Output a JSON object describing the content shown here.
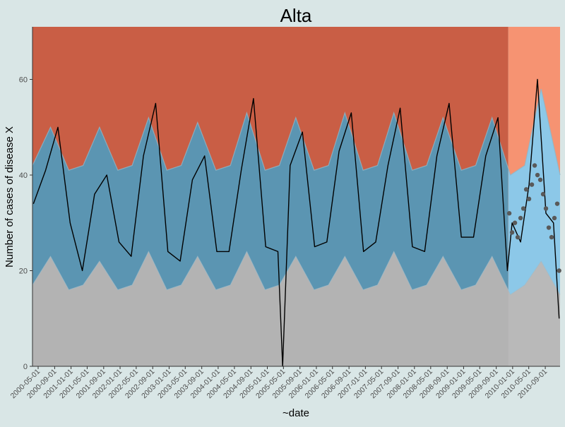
{
  "chart_data": {
    "type": "area",
    "title": "Alta",
    "xlabel": "~date",
    "ylabel": "Number of cases of disease X",
    "xlim": [
      "2000-03-20",
      "2010-12-20"
    ],
    "ylim": [
      0,
      71
    ],
    "yticks": [
      0,
      20,
      40,
      60
    ],
    "xticks": [
      "2000-05-01",
      "2000-09-01",
      "2001-01-01",
      "2001-05-01",
      "2001-09-01",
      "2002-01-01",
      "2002-05-01",
      "2002-09-01",
      "2003-01-01",
      "2003-05-01",
      "2003-09-01",
      "2004-01-01",
      "2004-05-01",
      "2004-09-01",
      "2005-01-01",
      "2005-05-01",
      "2005-09-01",
      "2006-01-01",
      "2006-05-01",
      "2006-09-01",
      "2007-01-01",
      "2007-05-01",
      "2007-09-01",
      "2008-01-01",
      "2008-05-01",
      "2008-09-01",
      "2009-01-01",
      "2009-05-01",
      "2009-09-01",
      "2010-01-01",
      "2010-05-01",
      "2010-09-01"
    ],
    "grid": false,
    "legend": "none",
    "prediction_start": "2009-11-30",
    "colors": {
      "background": "#d9e6e6",
      "gray_zone": "#b3b3b3",
      "blue_zone": "#5b95b2",
      "red_zone": "#c95e45",
      "gray_zone_pred": "#b9b9b9",
      "blue_zone_pred": "#8cc8e8",
      "red_zone_pred": "#f69372",
      "band_edge": "#8fb6c8",
      "observed_line": "#000000",
      "prediction_points": "#595959"
    },
    "series": [
      {
        "name": "",
        "role": "observed",
        "x": [
          "2000-03-27",
          "2000-06-26",
          "2000-09-25",
          "2000-12-25",
          "2001-03-26",
          "2001-06-25",
          "2001-09-24",
          "2001-12-24",
          "2002-03-25",
          "2002-06-24",
          "2002-09-23",
          "2002-12-23",
          "2003-03-24",
          "2003-06-23",
          "2003-09-22",
          "2003-12-22",
          "2004-03-22",
          "2004-06-21",
          "2004-09-20",
          "2004-12-20",
          "2005-03-21",
          "2005-04-25",
          "2005-06-20",
          "2005-09-19",
          "2005-12-19",
          "2006-03-20",
          "2006-06-19",
          "2006-09-18",
          "2006-12-18",
          "2007-03-19",
          "2007-06-18",
          "2007-09-17",
          "2007-12-17",
          "2008-03-17",
          "2008-06-16",
          "2008-09-15",
          "2008-12-15",
          "2009-03-16",
          "2009-06-15",
          "2009-09-14",
          "2009-11-23",
          "2009-12-28",
          "2010-03-01",
          "2010-05-03",
          "2010-07-05",
          "2010-09-06",
          "2010-11-01",
          "2010-12-13"
        ],
        "y": [
          34,
          41,
          50,
          30,
          20,
          36,
          40,
          26,
          23,
          44,
          55,
          24,
          22,
          39,
          44,
          24,
          24,
          41,
          56,
          25,
          24,
          0,
          42,
          49,
          25,
          26,
          45,
          53,
          24,
          26,
          42,
          54,
          25,
          24,
          44,
          55,
          27,
          27,
          44,
          52,
          20,
          30,
          26,
          38,
          60,
          32,
          30,
          10
        ]
      },
      {
        "name": "",
        "role": "prediction",
        "x": [
          "2009-12-07",
          "2009-12-28",
          "2010-01-18",
          "2010-02-08",
          "2010-03-01",
          "2010-03-22",
          "2010-04-12",
          "2010-05-03",
          "2010-05-24",
          "2010-06-14",
          "2010-07-05",
          "2010-07-26",
          "2010-08-16",
          "2010-09-06",
          "2010-09-27",
          "2010-10-18",
          "2010-11-08",
          "2010-11-29",
          "2010-12-13"
        ],
        "y": [
          32,
          28,
          30,
          27,
          31,
          33,
          37,
          35,
          38,
          42,
          40,
          39,
          36,
          33,
          29,
          27,
          31,
          34,
          20
        ]
      },
      {
        "name": "",
        "role": "lower_threshold",
        "x": [
          "2000-03-20",
          "2000-08-01",
          "2000-12-15",
          "2001-04-01",
          "2001-08-01",
          "2001-12-15",
          "2002-04-01",
          "2002-08-01",
          "2002-12-15",
          "2003-04-01",
          "2003-08-01",
          "2003-12-15",
          "2004-04-01",
          "2004-08-01",
          "2004-12-15",
          "2005-04-01",
          "2005-08-01",
          "2005-12-15",
          "2006-04-01",
          "2006-08-01",
          "2006-12-15",
          "2007-04-01",
          "2007-08-01",
          "2007-12-15",
          "2008-04-01",
          "2008-08-01",
          "2008-12-15",
          "2009-04-01",
          "2009-08-01",
          "2009-12-15",
          "2010-04-01",
          "2010-08-01",
          "2010-12-20"
        ],
        "y": [
          17,
          23,
          16,
          17,
          22,
          16,
          17,
          24,
          16,
          17,
          23,
          16,
          17,
          24,
          16,
          17,
          23,
          16,
          17,
          23,
          16,
          17,
          24,
          16,
          17,
          23,
          16,
          17,
          23,
          15,
          17,
          22,
          15
        ]
      },
      {
        "name": "",
        "role": "upper_threshold",
        "x": [
          "2000-03-20",
          "2000-08-01",
          "2000-12-15",
          "2001-04-01",
          "2001-08-01",
          "2001-12-15",
          "2002-04-01",
          "2002-08-01",
          "2002-12-15",
          "2003-04-01",
          "2003-08-01",
          "2003-12-15",
          "2004-04-01",
          "2004-08-01",
          "2004-12-15",
          "2005-04-01",
          "2005-08-01",
          "2005-12-15",
          "2006-04-01",
          "2006-08-01",
          "2006-12-15",
          "2007-04-01",
          "2007-08-01",
          "2007-12-15",
          "2008-04-01",
          "2008-08-01",
          "2008-12-15",
          "2009-04-01",
          "2009-08-01",
          "2009-12-15",
          "2010-04-01",
          "2010-08-01",
          "2010-12-20"
        ],
        "y": [
          42,
          50,
          41,
          42,
          50,
          41,
          42,
          52,
          41,
          42,
          51,
          41,
          42,
          53,
          41,
          42,
          52,
          41,
          42,
          53,
          41,
          42,
          53,
          41,
          42,
          52,
          41,
          42,
          52,
          40,
          42,
          58,
          40
        ]
      }
    ]
  }
}
